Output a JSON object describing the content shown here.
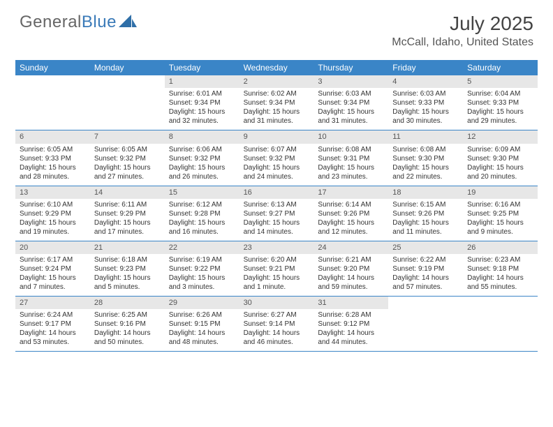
{
  "brand": {
    "part1": "General",
    "part2": "Blue"
  },
  "title": "July 2025",
  "location": "McCall, Idaho, United States",
  "colors": {
    "header_bg": "#3a85c7",
    "daynum_bg": "#e7e7e7",
    "text": "#333333",
    "brand_blue": "#3a7ab8"
  },
  "dayNames": [
    "Sunday",
    "Monday",
    "Tuesday",
    "Wednesday",
    "Thursday",
    "Friday",
    "Saturday"
  ],
  "weeks": [
    [
      null,
      null,
      {
        "d": "1",
        "sr": "6:01 AM",
        "ss": "9:34 PM",
        "dl": "15 hours and 32 minutes."
      },
      {
        "d": "2",
        "sr": "6:02 AM",
        "ss": "9:34 PM",
        "dl": "15 hours and 31 minutes."
      },
      {
        "d": "3",
        "sr": "6:03 AM",
        "ss": "9:34 PM",
        "dl": "15 hours and 31 minutes."
      },
      {
        "d": "4",
        "sr": "6:03 AM",
        "ss": "9:33 PM",
        "dl": "15 hours and 30 minutes."
      },
      {
        "d": "5",
        "sr": "6:04 AM",
        "ss": "9:33 PM",
        "dl": "15 hours and 29 minutes."
      }
    ],
    [
      {
        "d": "6",
        "sr": "6:05 AM",
        "ss": "9:33 PM",
        "dl": "15 hours and 28 minutes."
      },
      {
        "d": "7",
        "sr": "6:05 AM",
        "ss": "9:32 PM",
        "dl": "15 hours and 27 minutes."
      },
      {
        "d": "8",
        "sr": "6:06 AM",
        "ss": "9:32 PM",
        "dl": "15 hours and 26 minutes."
      },
      {
        "d": "9",
        "sr": "6:07 AM",
        "ss": "9:32 PM",
        "dl": "15 hours and 24 minutes."
      },
      {
        "d": "10",
        "sr": "6:08 AM",
        "ss": "9:31 PM",
        "dl": "15 hours and 23 minutes."
      },
      {
        "d": "11",
        "sr": "6:08 AM",
        "ss": "9:30 PM",
        "dl": "15 hours and 22 minutes."
      },
      {
        "d": "12",
        "sr": "6:09 AM",
        "ss": "9:30 PM",
        "dl": "15 hours and 20 minutes."
      }
    ],
    [
      {
        "d": "13",
        "sr": "6:10 AM",
        "ss": "9:29 PM",
        "dl": "15 hours and 19 minutes."
      },
      {
        "d": "14",
        "sr": "6:11 AM",
        "ss": "9:29 PM",
        "dl": "15 hours and 17 minutes."
      },
      {
        "d": "15",
        "sr": "6:12 AM",
        "ss": "9:28 PM",
        "dl": "15 hours and 16 minutes."
      },
      {
        "d": "16",
        "sr": "6:13 AM",
        "ss": "9:27 PM",
        "dl": "15 hours and 14 minutes."
      },
      {
        "d": "17",
        "sr": "6:14 AM",
        "ss": "9:26 PM",
        "dl": "15 hours and 12 minutes."
      },
      {
        "d": "18",
        "sr": "6:15 AM",
        "ss": "9:26 PM",
        "dl": "15 hours and 11 minutes."
      },
      {
        "d": "19",
        "sr": "6:16 AM",
        "ss": "9:25 PM",
        "dl": "15 hours and 9 minutes."
      }
    ],
    [
      {
        "d": "20",
        "sr": "6:17 AM",
        "ss": "9:24 PM",
        "dl": "15 hours and 7 minutes."
      },
      {
        "d": "21",
        "sr": "6:18 AM",
        "ss": "9:23 PM",
        "dl": "15 hours and 5 minutes."
      },
      {
        "d": "22",
        "sr": "6:19 AM",
        "ss": "9:22 PM",
        "dl": "15 hours and 3 minutes."
      },
      {
        "d": "23",
        "sr": "6:20 AM",
        "ss": "9:21 PM",
        "dl": "15 hours and 1 minute."
      },
      {
        "d": "24",
        "sr": "6:21 AM",
        "ss": "9:20 PM",
        "dl": "14 hours and 59 minutes."
      },
      {
        "d": "25",
        "sr": "6:22 AM",
        "ss": "9:19 PM",
        "dl": "14 hours and 57 minutes."
      },
      {
        "d": "26",
        "sr": "6:23 AM",
        "ss": "9:18 PM",
        "dl": "14 hours and 55 minutes."
      }
    ],
    [
      {
        "d": "27",
        "sr": "6:24 AM",
        "ss": "9:17 PM",
        "dl": "14 hours and 53 minutes."
      },
      {
        "d": "28",
        "sr": "6:25 AM",
        "ss": "9:16 PM",
        "dl": "14 hours and 50 minutes."
      },
      {
        "d": "29",
        "sr": "6:26 AM",
        "ss": "9:15 PM",
        "dl": "14 hours and 48 minutes."
      },
      {
        "d": "30",
        "sr": "6:27 AM",
        "ss": "9:14 PM",
        "dl": "14 hours and 46 minutes."
      },
      {
        "d": "31",
        "sr": "6:28 AM",
        "ss": "9:12 PM",
        "dl": "14 hours and 44 minutes."
      },
      null,
      null
    ]
  ],
  "labels": {
    "sunrise": "Sunrise: ",
    "sunset": "Sunset: ",
    "daylight": "Daylight: "
  }
}
